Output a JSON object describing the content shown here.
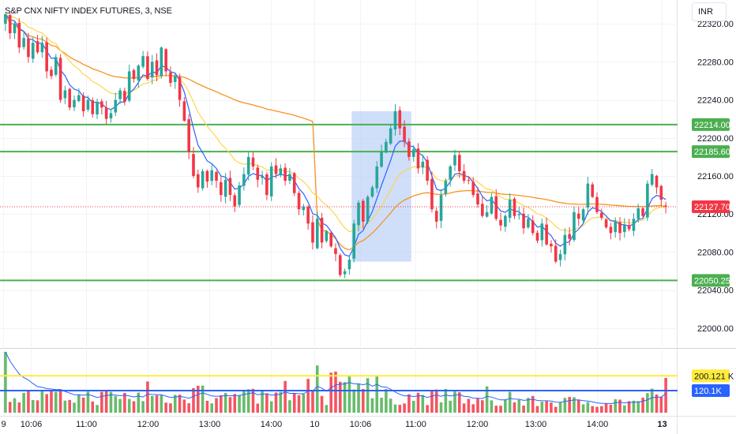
{
  "header": {
    "symbol_title": "S&P CNX NIFTY INDEX FUTURES, 3, NSE",
    "currency_button": "INR"
  },
  "price_axis": {
    "ticks": [
      "22320.00",
      "22280.00",
      "22240.00",
      "22200.00",
      "22160.00",
      "22120.00",
      "22080.00",
      "22040.00",
      "22000.00"
    ]
  },
  "time_axis": {
    "ticks": [
      {
        "label": "9",
        "bold": false
      },
      {
        "label": "10:06",
        "bold": false
      },
      {
        "label": "11:00",
        "bold": false
      },
      {
        "label": "12:00",
        "bold": false
      },
      {
        "label": "13:00",
        "bold": false
      },
      {
        "label": "14:00",
        "bold": false
      },
      {
        "label": "10",
        "bold": false
      },
      {
        "label": "10:06",
        "bold": false
      },
      {
        "label": "11:00",
        "bold": false
      },
      {
        "label": "12:00",
        "bold": false
      },
      {
        "label": "13:00",
        "bold": false
      },
      {
        "label": "14:00",
        "bold": false
      },
      {
        "label": "13",
        "bold": true
      }
    ]
  },
  "horizontal_levels": [
    {
      "price": 22214.0,
      "label": "22214.00",
      "color": "#4caf50"
    },
    {
      "price": 22185.6,
      "label": "22185.60",
      "color": "#4caf50"
    },
    {
      "price": 22050.25,
      "label": "22050.25",
      "color": "#4caf50"
    }
  ],
  "last_price": {
    "price": 22127.7,
    "label": "22127.70",
    "color": "#f23645"
  },
  "highlight_zone": {
    "price_from": 22070,
    "price_to": 22228,
    "color": "#bbd0f7"
  },
  "volume_levels": [
    {
      "value_k": 200.121,
      "label": "200.121 K",
      "color": "#ffeb3b"
    },
    {
      "value_k": 120.1,
      "label": "120.1K",
      "color": "#2962ff"
    }
  ],
  "colors": {
    "up": "#26a69a",
    "up_volume": "#4caf50",
    "down": "#f23645",
    "ema_fast": "#2962ff",
    "ema_slow": "#ffd54f",
    "vwap": "#f7931e"
  },
  "chart_data": {
    "type": "candlestick",
    "interval": "3 min",
    "y_range": [
      21980,
      22345
    ],
    "volume_range_k": [
      0,
      330
    ],
    "closes": [
      22330,
      22310,
      22320,
      22295,
      22305,
      22285,
      22300,
      22290,
      22300,
      22270,
      22265,
      22285,
      22240,
      22250,
      22232,
      22240,
      22245,
      22228,
      22240,
      22225,
      22238,
      22232,
      22220,
      22226,
      22240,
      22250,
      22238,
      22270,
      22262,
      22276,
      22286,
      22262,
      22280,
      22266,
      22295,
      22270,
      22258,
      22265,
      22240,
      22218,
      22185,
      22160,
      22148,
      22165,
      22154,
      22166,
      22155,
      22140,
      22156,
      22140,
      22128,
      22150,
      22162,
      22180,
      22170,
      22156,
      22160,
      22140,
      22170,
      22162,
      22168,
      22155,
      22162,
      22142,
      22125,
      22128,
      22110,
      22090,
      22115,
      22090,
      22102,
      22086,
      22078,
      22056,
      22060,
      22072,
      22110,
      22132,
      22112,
      22138,
      22148,
      22170,
      22185,
      22196,
      22210,
      22228,
      22210,
      22196,
      22180,
      22188,
      22168,
      22175,
      22155,
      22125,
      22112,
      22140,
      22155,
      22170,
      22182,
      22165,
      22155,
      22155,
      22140,
      22130,
      22118,
      22122,
      22138,
      22115,
      22108,
      22118,
      22135,
      22118,
      22120,
      22105,
      22115,
      22100,
      22092,
      22110,
      22088,
      22086,
      22070,
      22078,
      22098,
      22094,
      22122,
      22115,
      22125,
      22152,
      22138,
      22122,
      22116,
      22106,
      22100,
      22112,
      22100,
      22108,
      22104,
      22115,
      22126,
      22118,
      22152,
      22162,
      22148,
      22135,
      22128
    ],
    "x_range_labels": [
      "9",
      "13"
    ]
  }
}
